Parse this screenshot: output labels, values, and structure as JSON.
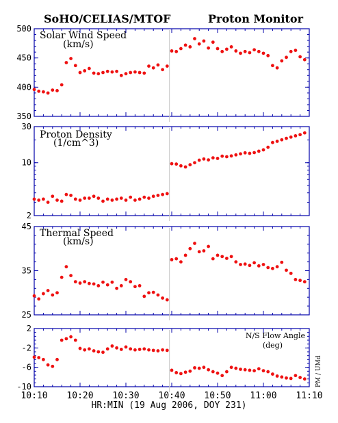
{
  "header": {
    "left_title": "SoHO/CELIAS/MTOF",
    "right_title": "Proton Monitor"
  },
  "x_axis": {
    "label": "HR:MIN (19 Aug 2006, DOY 231)",
    "ticks": [
      "10:10",
      "10:20",
      "10:30",
      "10:40",
      "10:50",
      "11:00",
      "11:10"
    ],
    "range_min": [
      0,
      60
    ]
  },
  "credit": "PM / UMd",
  "colors": {
    "points": "#ee1111",
    "axes": "#0000aa",
    "gap_line": "#c8c8c8"
  },
  "gap_minute": 29.5,
  "chart_data": [
    {
      "type": "scatter",
      "title": "Solar Wind Speed",
      "unit": "(km/s)",
      "ylim": [
        350,
        500
      ],
      "y_ticks": [
        "500",
        "450",
        "400",
        "350"
      ],
      "log": false,
      "x": [
        0,
        1,
        2,
        3,
        4,
        5,
        6,
        7,
        8,
        9,
        10,
        11,
        12,
        13,
        14,
        15,
        16,
        17,
        18,
        19,
        20,
        21,
        22,
        23,
        24,
        25,
        26,
        27,
        28,
        29,
        30,
        31,
        32,
        33,
        34,
        35,
        36,
        37,
        38,
        39,
        40,
        41,
        42,
        43,
        44,
        45,
        46,
        47,
        48,
        49,
        50,
        51,
        52,
        53,
        54,
        55,
        56,
        57,
        58,
        59
      ],
      "values": [
        396,
        393,
        392,
        390,
        395,
        394,
        404,
        442,
        449,
        437,
        425,
        428,
        432,
        424,
        423,
        425,
        427,
        426,
        427,
        420,
        423,
        425,
        426,
        425,
        424,
        436,
        433,
        438,
        430,
        436,
        462,
        461,
        466,
        472,
        469,
        483,
        474,
        479,
        467,
        477,
        466,
        461,
        465,
        469,
        462,
        458,
        461,
        459,
        464,
        461,
        458,
        454,
        437,
        433,
        445,
        451,
        461,
        463,
        452,
        447
      ]
    },
    {
      "type": "scatter",
      "title": "Proton Density",
      "unit": "(1/cm^3)",
      "ylim": [
        2,
        30
      ],
      "y_ticks": [
        "30",
        "10",
        "2"
      ],
      "log": true,
      "x": [
        0,
        1,
        2,
        3,
        4,
        5,
        6,
        7,
        8,
        9,
        10,
        11,
        12,
        13,
        14,
        15,
        16,
        17,
        18,
        19,
        20,
        21,
        22,
        23,
        24,
        25,
        26,
        27,
        28,
        29,
        30,
        31,
        32,
        33,
        34,
        35,
        36,
        37,
        38,
        39,
        40,
        41,
        42,
        43,
        44,
        45,
        46,
        47,
        48,
        49,
        50,
        51,
        52,
        53,
        54,
        55,
        56,
        57,
        58,
        59
      ],
      "values": [
        3.3,
        3.2,
        3.3,
        3.0,
        3.6,
        3.2,
        3.1,
        3.8,
        3.7,
        3.3,
        3.2,
        3.4,
        3.4,
        3.6,
        3.4,
        3.1,
        3.3,
        3.2,
        3.3,
        3.4,
        3.2,
        3.5,
        3.2,
        3.3,
        3.5,
        3.4,
        3.6,
        3.7,
        3.8,
        3.9,
        9.7,
        9.6,
        9.1,
        8.8,
        9.4,
        10.0,
        10.8,
        11.2,
        10.9,
        11.6,
        11.4,
        12.2,
        12.0,
        12.3,
        12.7,
        13.1,
        13.5,
        13.3,
        13.6,
        14.2,
        14.8,
        16.0,
        18.5,
        19.2,
        20.1,
        21.0,
        21.8,
        22.7,
        23.5,
        24.8
      ]
    },
    {
      "type": "scatter",
      "title": "Thermal Speed",
      "unit": "(km/s)",
      "ylim": [
        25,
        45
      ],
      "y_ticks": [
        "45",
        "35",
        "25"
      ],
      "log": false,
      "x": [
        0,
        1,
        2,
        3,
        4,
        5,
        6,
        7,
        8,
        9,
        10,
        11,
        12,
        13,
        14,
        15,
        16,
        17,
        18,
        19,
        20,
        21,
        22,
        23,
        24,
        25,
        26,
        27,
        28,
        29,
        30,
        31,
        32,
        33,
        34,
        35,
        36,
        37,
        38,
        39,
        40,
        41,
        42,
        43,
        44,
        45,
        46,
        47,
        48,
        49,
        50,
        51,
        52,
        53,
        54,
        55,
        56,
        57,
        58,
        59
      ],
      "values": [
        29.3,
        28.6,
        29.8,
        30.5,
        29.5,
        30.0,
        33.5,
        35.9,
        33.9,
        32.5,
        32.2,
        32.5,
        32.1,
        32.0,
        31.6,
        32.4,
        31.8,
        32.4,
        31.0,
        31.6,
        33.0,
        32.5,
        31.4,
        31.6,
        29.2,
        30.0,
        30.1,
        29.5,
        28.8,
        28.4,
        37.5,
        37.7,
        37.0,
        38.5,
        40.0,
        41.2,
        39.3,
        39.5,
        40.5,
        37.7,
        38.5,
        38.2,
        37.8,
        38.2,
        37.0,
        36.4,
        36.5,
        36.2,
        36.8,
        36.1,
        36.4,
        35.7,
        35.5,
        35.9,
        36.9,
        35.1,
        34.4,
        33.0,
        32.8,
        32.5
      ]
    },
    {
      "type": "scatter",
      "title": "N/S Flow Angle",
      "unit": "(deg)",
      "ylim": [
        -10,
        2
      ],
      "y_ticks": [
        "2",
        "-2",
        "-6",
        "-10"
      ],
      "log": false,
      "x": [
        0,
        1,
        2,
        3,
        4,
        5,
        6,
        7,
        8,
        9,
        10,
        11,
        12,
        13,
        14,
        15,
        16,
        17,
        18,
        19,
        20,
        21,
        22,
        23,
        24,
        25,
        26,
        27,
        28,
        29,
        30,
        31,
        32,
        33,
        34,
        35,
        36,
        37,
        38,
        39,
        40,
        41,
        42,
        43,
        44,
        45,
        46,
        47,
        48,
        49,
        50,
        51,
        52,
        53,
        54,
        55,
        56,
        57,
        58,
        59
      ],
      "values": [
        -3.9,
        -4.0,
        -4.4,
        -5.5,
        -5.8,
        -4.4,
        -0.4,
        -0.1,
        0.3,
        -0.4,
        -2.1,
        -2.4,
        -2.2,
        -2.6,
        -2.8,
        -2.9,
        -2.2,
        -1.6,
        -2.0,
        -2.3,
        -1.8,
        -2.2,
        -2.4,
        -2.3,
        -2.2,
        -2.4,
        -2.5,
        -2.6,
        -2.4,
        -2.5,
        -6.6,
        -7.1,
        -7.3,
        -7.0,
        -6.8,
        -6.1,
        -6.2,
        -6.0,
        -6.5,
        -6.9,
        -7.2,
        -7.7,
        -6.9,
        -6.0,
        -6.2,
        -6.4,
        -6.5,
        -6.6,
        -6.7,
        -6.3,
        -6.7,
        -6.9,
        -7.4,
        -7.8,
        -8.0,
        -8.2,
        -8.3,
        -7.7,
        -8.1,
        -8.4
      ]
    }
  ]
}
